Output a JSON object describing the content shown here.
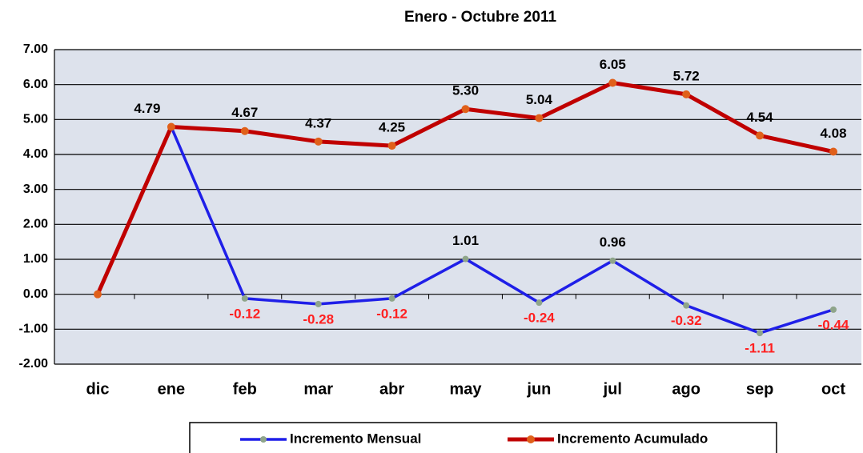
{
  "chart_data": {
    "type": "line",
    "title": "Enero - Octubre 2011",
    "categories": [
      "dic",
      "ene",
      "feb",
      "mar",
      "abr",
      "may",
      "jun",
      "jul",
      "ago",
      "sep",
      "oct"
    ],
    "series": [
      {
        "name": "Incremento Mensual",
        "color": "#1f1fe8",
        "marker_color": "#8fa58a",
        "values": [
          null,
          4.79,
          -0.12,
          -0.28,
          -0.12,
          1.01,
          -0.24,
          0.96,
          -0.32,
          -1.11,
          -0.44
        ],
        "value_labels": [
          null,
          null,
          "-0.12",
          "-0.28",
          "-0.12",
          "1.01",
          "-0.24",
          "0.96",
          "-0.32",
          "-1.11",
          "-0.44"
        ]
      },
      {
        "name": "Incremento Acumulado",
        "color": "#c00000",
        "marker_color": "#e0601a",
        "values": [
          0,
          4.79,
          4.67,
          4.37,
          4.25,
          5.3,
          5.04,
          6.05,
          5.72,
          4.54,
          4.08
        ],
        "value_labels": [
          null,
          "4.79",
          "4.67",
          "4.37",
          "4.25",
          "5.30",
          "5.04",
          "6.05",
          "5.72",
          "4.54",
          "4.08"
        ]
      }
    ],
    "ylim": [
      -2,
      7
    ],
    "yticks": [
      {
        "value": -2,
        "label": "-2.00"
      },
      {
        "value": -1,
        "label": "-1.00"
      },
      {
        "value": 0,
        "label": "0.00"
      },
      {
        "value": 1,
        "label": "1.00"
      },
      {
        "value": 2,
        "label": "2.00"
      },
      {
        "value": 3,
        "label": "3.00"
      },
      {
        "value": 4,
        "label": "4.00"
      },
      {
        "value": 5,
        "label": "5.00"
      },
      {
        "value": 6,
        "label": "6.00"
      },
      {
        "value": 7,
        "label": "7.00"
      }
    ],
    "grid": true
  }
}
